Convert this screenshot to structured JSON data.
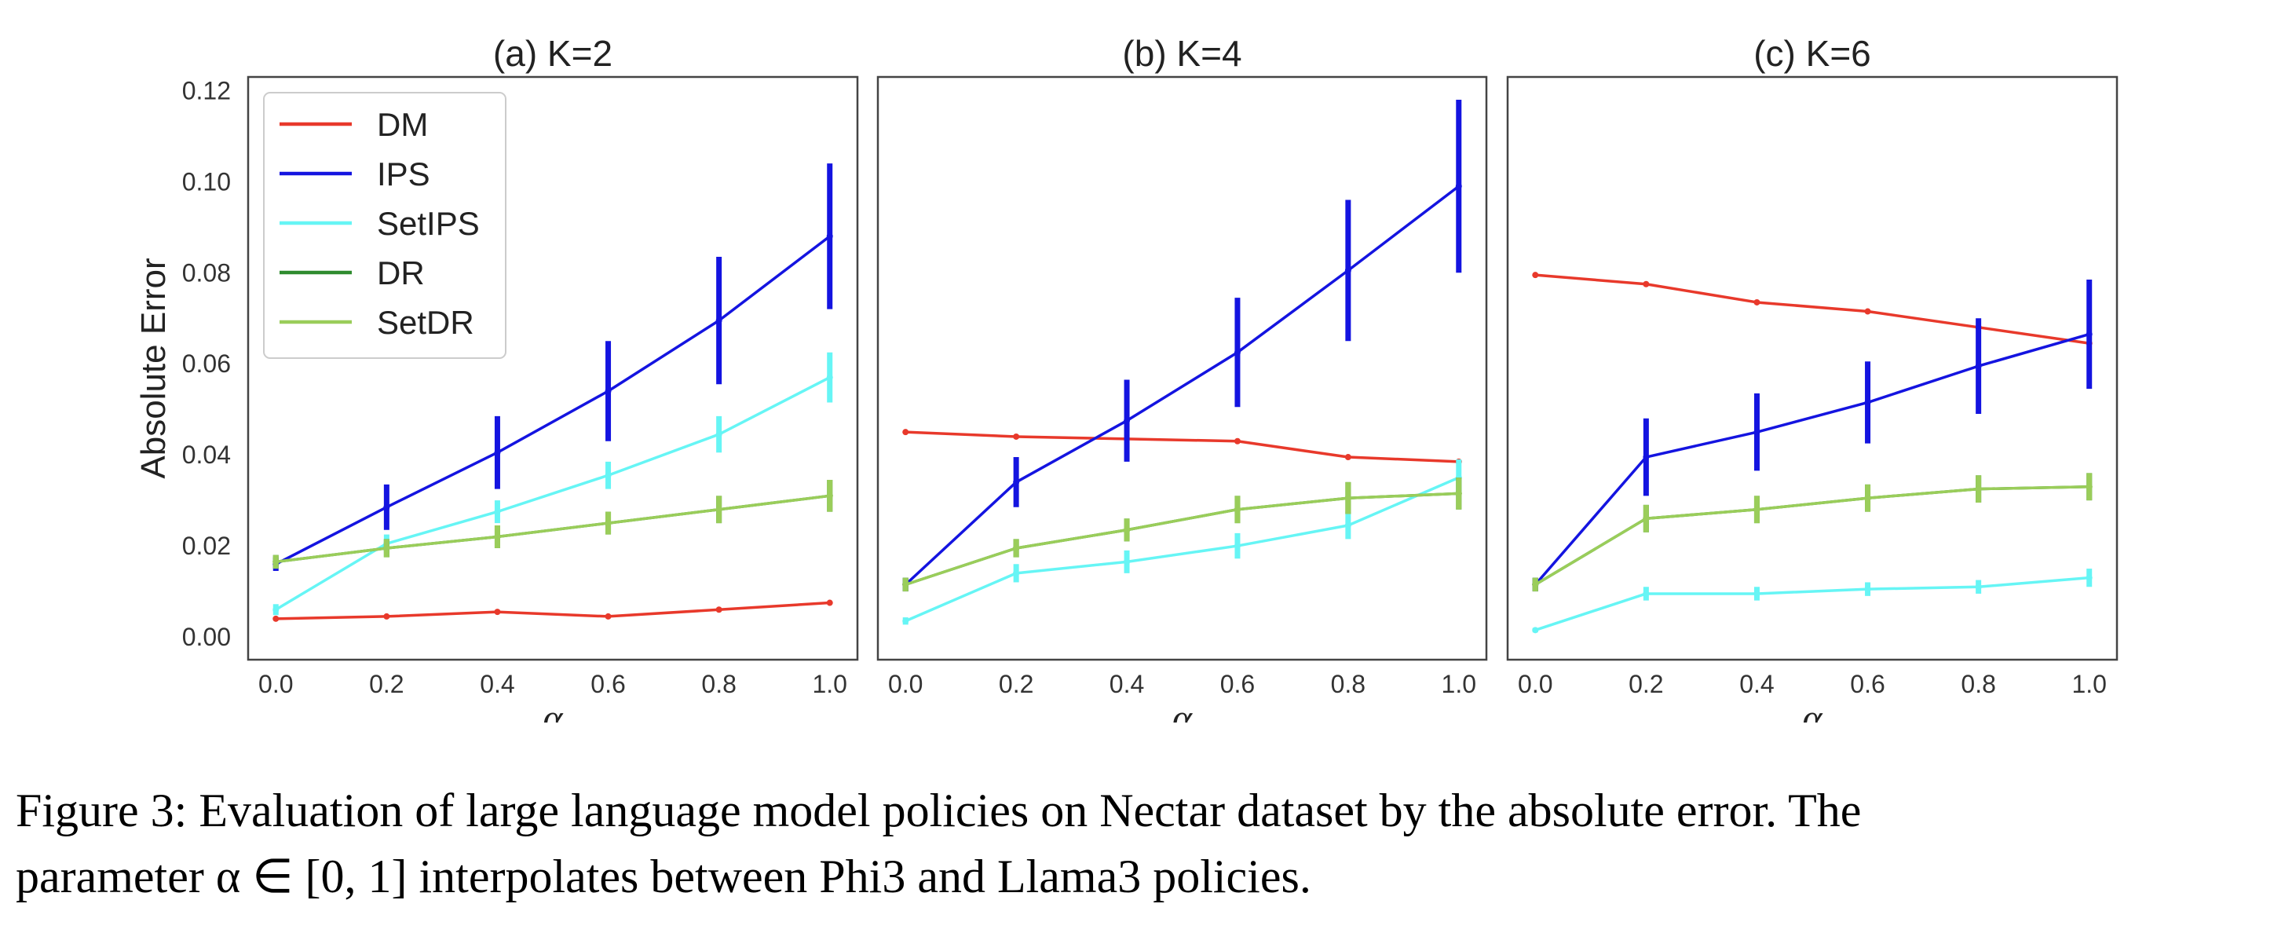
{
  "chart_data": {
    "type": "line",
    "ylabel": "Absolute Error",
    "xlabel": "α",
    "ylim": [
      -0.005,
      0.123
    ],
    "xlim": [
      -0.05,
      1.05
    ],
    "x": [
      0.0,
      0.2,
      0.4,
      0.6,
      0.8,
      1.0
    ],
    "x_tick_labels": [
      "0.0",
      "0.2",
      "0.4",
      "0.6",
      "0.8",
      "1.0"
    ],
    "y_ticks": [
      0.0,
      0.02,
      0.04,
      0.06,
      0.08,
      0.1,
      0.12
    ],
    "y_tick_labels": [
      "0.00",
      "0.02",
      "0.04",
      "0.06",
      "0.08",
      "0.10",
      "0.12"
    ],
    "legend": {
      "placement": "top-left",
      "entries": [
        {
          "name": "DM",
          "color": "#e8392b"
        },
        {
          "name": "IPS",
          "color": "#1414e0"
        },
        {
          "name": "SetIPS",
          "color": "#66f5f5"
        },
        {
          "name": "DR",
          "color": "#2e8b2e"
        },
        {
          "name": "SetDR",
          "color": "#9acd5a"
        }
      ]
    },
    "panels": [
      {
        "title": "(a) K=2",
        "series": [
          {
            "name": "DM",
            "values": [
              0.004,
              0.0045,
              0.0055,
              0.0045,
              0.006,
              0.0075
            ],
            "errors": [
              0.0003,
              0.0003,
              0.0003,
              0.0003,
              0.0003,
              0.0003
            ]
          },
          {
            "name": "IPS",
            "values": [
              0.016,
              0.0285,
              0.0405,
              0.054,
              0.0695,
              0.088
            ],
            "errors": [
              0.0015,
              0.005,
              0.008,
              0.011,
              0.014,
              0.016
            ]
          },
          {
            "name": "SetIPS",
            "values": [
              0.006,
              0.0205,
              0.0275,
              0.0355,
              0.0445,
              0.057
            ],
            "errors": [
              0.0012,
              0.002,
              0.0025,
              0.003,
              0.004,
              0.0055
            ]
          },
          {
            "name": "DR",
            "values": [
              0.0165,
              0.0195,
              0.022,
              0.025,
              0.028,
              0.031
            ],
            "errors": [
              0.0015,
              0.002,
              0.0025,
              0.0025,
              0.003,
              0.0035
            ]
          },
          {
            "name": "SetDR",
            "values": [
              0.0165,
              0.0195,
              0.022,
              0.025,
              0.028,
              0.031
            ],
            "errors": [
              0.0015,
              0.002,
              0.0025,
              0.0025,
              0.003,
              0.0035
            ]
          }
        ]
      },
      {
        "title": "(b) K=4",
        "series": [
          {
            "name": "DM",
            "values": [
              0.045,
              0.044,
              0.0435,
              0.043,
              0.0395,
              0.0385
            ],
            "errors": [
              0.0003,
              0.0003,
              0.0003,
              0.0003,
              0.0003,
              0.0003
            ]
          },
          {
            "name": "IPS",
            "values": [
              0.0115,
              0.034,
              0.0475,
              0.0625,
              0.0805,
              0.099
            ],
            "errors": [
              0.0015,
              0.0055,
              0.009,
              0.012,
              0.0155,
              0.019
            ]
          },
          {
            "name": "SetIPS",
            "values": [
              0.0035,
              0.014,
              0.0165,
              0.02,
              0.0245,
              0.035
            ],
            "errors": [
              0.0008,
              0.002,
              0.0025,
              0.0028,
              0.003,
              0.004
            ]
          },
          {
            "name": "DR",
            "values": [
              0.0115,
              0.0195,
              0.0235,
              0.028,
              0.0305,
              0.0315
            ],
            "errors": [
              0.0015,
              0.002,
              0.0025,
              0.003,
              0.0035,
              0.0035
            ]
          },
          {
            "name": "SetDR",
            "values": [
              0.0115,
              0.0195,
              0.0235,
              0.028,
              0.0305,
              0.0315
            ],
            "errors": [
              0.0015,
              0.002,
              0.0025,
              0.003,
              0.0035,
              0.0035
            ]
          }
        ]
      },
      {
        "title": "(c) K=6",
        "series": [
          {
            "name": "DM",
            "values": [
              0.0795,
              0.0775,
              0.0735,
              0.0715,
              0.068,
              0.0645
            ],
            "errors": [
              0.0003,
              0.0003,
              0.0003,
              0.0003,
              0.0003,
              0.0003
            ]
          },
          {
            "name": "IPS",
            "values": [
              0.0115,
              0.0395,
              0.045,
              0.0515,
              0.0595,
              0.0665
            ],
            "errors": [
              0.0015,
              0.0085,
              0.0085,
              0.009,
              0.0105,
              0.012
            ]
          },
          {
            "name": "SetIPS",
            "values": [
              0.0015,
              0.0095,
              0.0095,
              0.0105,
              0.011,
              0.013
            ],
            "errors": [
              0.0005,
              0.0015,
              0.0015,
              0.0015,
              0.0015,
              0.002
            ]
          },
          {
            "name": "DR",
            "values": [
              0.0115,
              0.026,
              0.028,
              0.0305,
              0.0325,
              0.033
            ],
            "errors": [
              0.0015,
              0.003,
              0.003,
              0.003,
              0.003,
              0.003
            ]
          },
          {
            "name": "SetDR",
            "values": [
              0.0115,
              0.026,
              0.028,
              0.0305,
              0.0325,
              0.033
            ],
            "errors": [
              0.0015,
              0.003,
              0.003,
              0.003,
              0.003,
              0.003
            ]
          }
        ]
      }
    ]
  },
  "caption": {
    "line1": "Figure 3: Evaluation of large language model policies on Nectar dataset by the absolute error. The",
    "line2": "parameter α ∈ [0, 1] interpolates between Phi3 and Llama3 policies."
  }
}
